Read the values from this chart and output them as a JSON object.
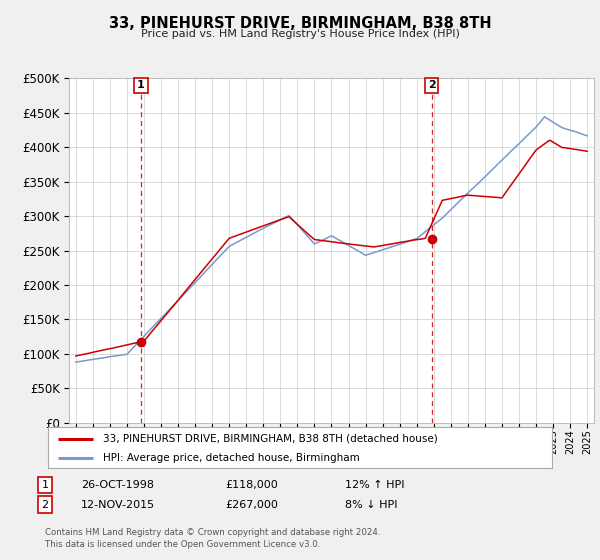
{
  "title": "33, PINEHURST DRIVE, BIRMINGHAM, B38 8TH",
  "subtitle": "Price paid vs. HM Land Registry's House Price Index (HPI)",
  "legend_label_red": "33, PINEHURST DRIVE, BIRMINGHAM, B38 8TH (detached house)",
  "legend_label_blue": "HPI: Average price, detached house, Birmingham",
  "transaction1_date": "26-OCT-1998",
  "transaction1_price": "£118,000",
  "transaction1_hpi": "12% ↑ HPI",
  "transaction1_year": 1998.82,
  "transaction1_value": 118000,
  "transaction2_date": "12-NOV-2015",
  "transaction2_price": "£267,000",
  "transaction2_hpi": "8% ↓ HPI",
  "transaction2_year": 2015.87,
  "transaction2_value": 267000,
  "footer_line1": "Contains HM Land Registry data © Crown copyright and database right 2024.",
  "footer_line2": "This data is licensed under the Open Government Licence v3.0.",
  "color_red": "#cc0000",
  "color_blue": "#7799cc",
  "color_grid": "#cccccc",
  "color_background": "#f0f0f0",
  "color_plot_bg": "#ffffff",
  "ylim": [
    0,
    500000
  ],
  "yticks": [
    0,
    50000,
    100000,
    150000,
    200000,
    250000,
    300000,
    350000,
    400000,
    450000,
    500000
  ],
  "xlim_start": 1994.6,
  "xlim_end": 2025.4
}
